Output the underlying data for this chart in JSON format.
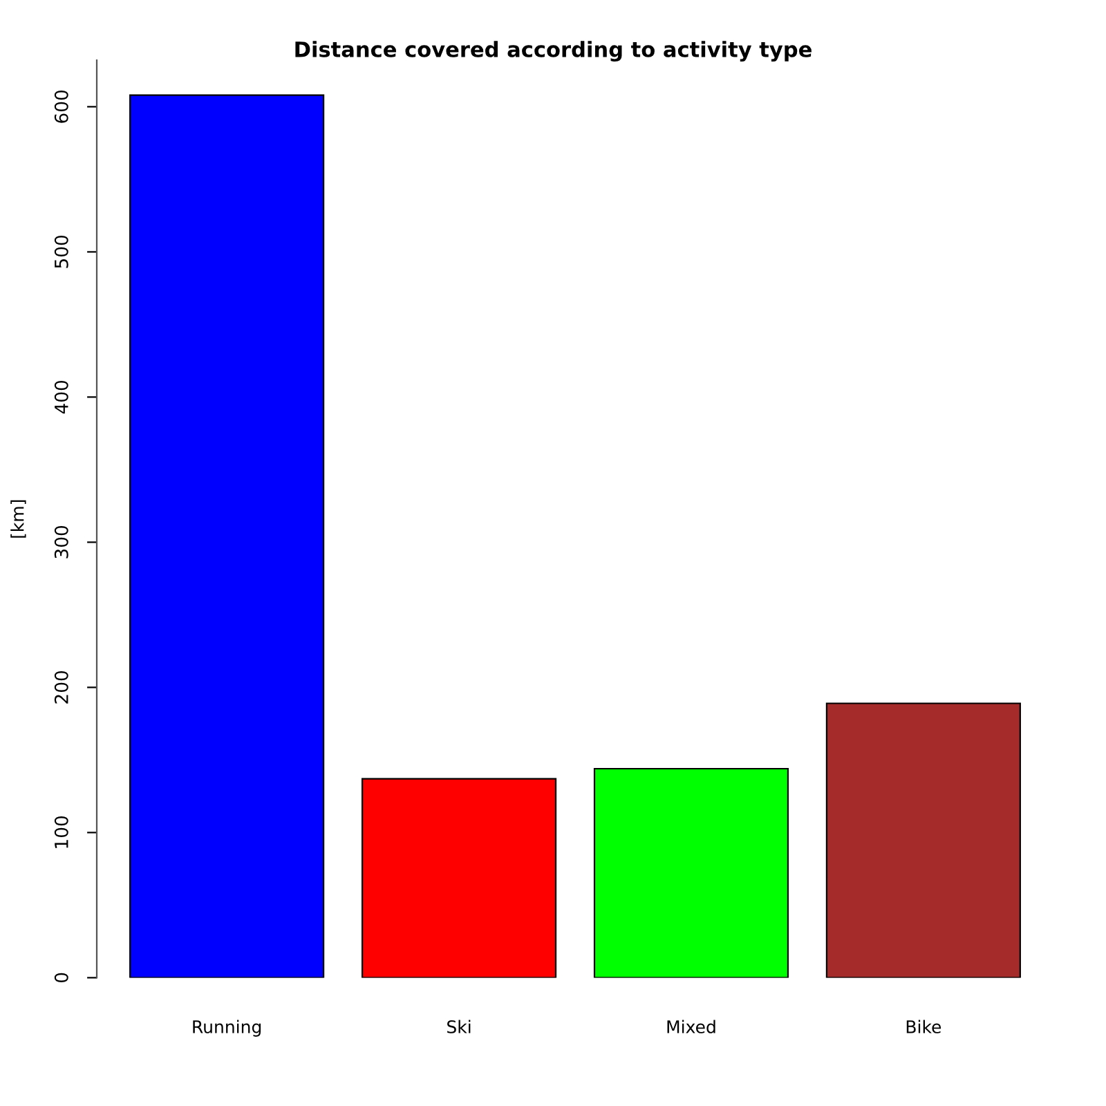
{
  "chart_data": {
    "type": "bar",
    "title": "Distance covered according to activity type",
    "ylabel": "[km]",
    "categories": [
      "Running",
      "Ski",
      "Mixed",
      "Bike"
    ],
    "values": [
      608,
      137,
      144,
      189
    ],
    "colors": [
      "#0000ff",
      "#ff0000",
      "#00ff00",
      "#a52a2a"
    ],
    "ylim": [
      0,
      632
    ],
    "yticks": [
      0,
      100,
      200,
      300,
      400,
      500,
      600
    ],
    "grid": false
  }
}
